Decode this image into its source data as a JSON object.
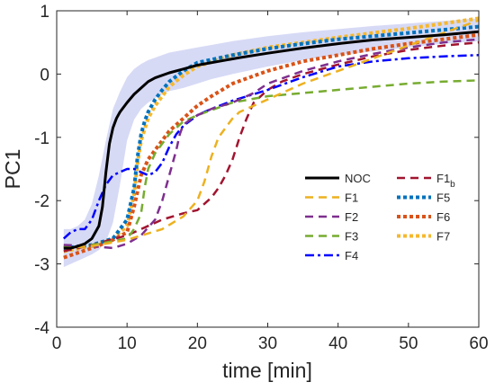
{
  "chart_data": {
    "type": "line",
    "title": "",
    "xlabel": "time [min]",
    "ylabel": "PC1",
    "xlim": [
      0,
      60
    ],
    "ylim": [
      -4,
      1
    ],
    "xticks": [
      0,
      10,
      20,
      30,
      40,
      50,
      60
    ],
    "yticks": [
      -4,
      -3,
      -2,
      -1,
      0,
      1
    ],
    "grid": false,
    "legend_position": "center-right",
    "noc_band": {
      "color": "#c9cdf2",
      "x": [
        1,
        2,
        3,
        4,
        5,
        6,
        7,
        8,
        9,
        10,
        11,
        12,
        13,
        14,
        15,
        16,
        18,
        20,
        22,
        25,
        30,
        35,
        40,
        45,
        50,
        55,
        60
      ],
      "upper": [
        -2.45,
        -2.45,
        -2.4,
        -2.3,
        -2.05,
        -1.6,
        -1.05,
        -0.55,
        -0.28,
        -0.05,
        0.08,
        0.16,
        0.22,
        0.26,
        0.3,
        0.34,
        0.38,
        0.42,
        0.46,
        0.52,
        0.6,
        0.66,
        0.71,
        0.76,
        0.8,
        0.84,
        0.88
      ],
      "lower": [
        -3.05,
        -3.0,
        -2.95,
        -2.9,
        -2.85,
        -2.78,
        -2.65,
        -2.35,
        -1.75,
        -1.05,
        -0.72,
        -0.55,
        -0.45,
        -0.38,
        -0.32,
        -0.27,
        -0.22,
        -0.15,
        -0.08,
        0.0,
        0.12,
        0.22,
        0.3,
        0.36,
        0.42,
        0.48,
        0.52
      ]
    },
    "series": [
      {
        "name": "NOC",
        "color": "#000000",
        "dash": "solid",
        "width": 3,
        "x": [
          1,
          2,
          3,
          4,
          5,
          6,
          6.5,
          7,
          7.5,
          8,
          8.5,
          9,
          10,
          11,
          12,
          13,
          14,
          16,
          18,
          20,
          23,
          26,
          30,
          35,
          40,
          45,
          50,
          55,
          60
        ],
        "y": [
          -2.75,
          -2.75,
          -2.72,
          -2.68,
          -2.6,
          -2.4,
          -2.1,
          -1.55,
          -1.1,
          -0.85,
          -0.7,
          -0.6,
          -0.45,
          -0.32,
          -0.22,
          -0.12,
          -0.06,
          0.02,
          0.08,
          0.14,
          0.2,
          0.26,
          0.33,
          0.41,
          0.48,
          0.54,
          0.58,
          0.62,
          0.67
        ]
      },
      {
        "name": "F1",
        "color": "#edb120",
        "dash": "dashed",
        "width": 2.5,
        "x": [
          1,
          5,
          10,
          15,
          18,
          20,
          21,
          22,
          23,
          24,
          25,
          26,
          28,
          30,
          35,
          40,
          45,
          50,
          55,
          60
        ],
        "y": [
          -2.75,
          -2.72,
          -2.62,
          -2.45,
          -2.25,
          -2.0,
          -1.7,
          -1.3,
          -1.0,
          -0.85,
          -0.7,
          -0.6,
          -0.5,
          -0.4,
          -0.15,
          0.05,
          0.25,
          0.45,
          0.65,
          0.85
        ]
      },
      {
        "name": "F2",
        "color": "#7e2f8e",
        "dash": "dashed",
        "width": 2.5,
        "x": [
          1,
          5,
          8,
          10,
          12,
          14,
          15,
          16,
          17,
          17.5,
          18,
          19,
          20,
          22,
          25,
          28,
          30,
          35,
          40,
          45,
          50,
          55,
          60
        ],
        "y": [
          -2.7,
          -2.72,
          -2.75,
          -2.68,
          -2.55,
          -2.3,
          -2.0,
          -1.6,
          -1.2,
          -0.95,
          -0.8,
          -0.72,
          -0.65,
          -0.55,
          -0.45,
          -0.3,
          -0.15,
          0.05,
          0.2,
          0.32,
          0.42,
          0.5,
          0.55
        ]
      },
      {
        "name": "F3",
        "color": "#77ac30",
        "dash": "dashed",
        "width": 2.5,
        "x": [
          1,
          5,
          10,
          11,
          12,
          12.5,
          13,
          14,
          15,
          16,
          18,
          20,
          25,
          30,
          35,
          40,
          45,
          50,
          55,
          60
        ],
        "y": [
          -2.72,
          -2.7,
          -2.6,
          -2.45,
          -2.2,
          -1.8,
          -1.5,
          -1.25,
          -1.1,
          -0.95,
          -0.75,
          -0.65,
          -0.45,
          -0.35,
          -0.3,
          -0.25,
          -0.2,
          -0.15,
          -0.12,
          -0.1
        ]
      },
      {
        "name": "F4",
        "color": "#0000ff",
        "dash": "dashdot",
        "width": 2.5,
        "x": [
          1,
          2,
          3,
          4,
          5,
          6,
          7,
          8,
          9,
          10,
          11,
          12,
          13,
          14,
          15,
          16,
          17,
          18,
          20,
          22,
          25,
          30,
          35,
          40,
          45,
          50,
          55,
          60
        ],
        "y": [
          -2.6,
          -2.5,
          -2.45,
          -2.45,
          -2.3,
          -2.0,
          -1.75,
          -1.6,
          -1.55,
          -1.5,
          -1.5,
          -1.55,
          -1.6,
          -1.55,
          -1.4,
          -1.15,
          -0.95,
          -0.82,
          -0.65,
          -0.55,
          -0.42,
          -0.25,
          -0.05,
          0.12,
          0.2,
          0.25,
          0.28,
          0.3
        ]
      },
      {
        "name": "F1_b",
        "color": "#a2142f",
        "dash": "dashed",
        "width": 2.5,
        "x": [
          1,
          5,
          10,
          15,
          18,
          20,
          22,
          23,
          24,
          25,
          26,
          27,
          28,
          30,
          32,
          35,
          40,
          45,
          50,
          55,
          60
        ],
        "y": [
          -2.8,
          -2.7,
          -2.55,
          -2.3,
          -2.2,
          -2.15,
          -1.95,
          -1.8,
          -1.6,
          -1.35,
          -1.0,
          -0.7,
          -0.45,
          -0.25,
          -0.12,
          0.0,
          0.15,
          0.28,
          0.38,
          0.45,
          0.5
        ]
      },
      {
        "name": "F5",
        "color": "#0072bd",
        "dash": "dotted",
        "width": 4,
        "x": [
          1,
          5,
          8,
          10,
          11,
          11.5,
          12,
          12.5,
          13,
          14,
          15,
          16,
          18,
          20,
          25,
          30,
          35,
          40,
          45,
          50,
          55,
          60
        ],
        "y": [
          -2.75,
          -2.7,
          -2.6,
          -2.3,
          -1.8,
          -1.3,
          -0.95,
          -0.75,
          -0.6,
          -0.4,
          -0.25,
          -0.12,
          0.05,
          0.18,
          0.3,
          0.4,
          0.48,
          0.55,
          0.6,
          0.65,
          0.7,
          0.75
        ]
      },
      {
        "name": "F6",
        "color": "#d95319",
        "dash": "dotted",
        "width": 4,
        "x": [
          1,
          5,
          8,
          10,
          11,
          12,
          13,
          14,
          15,
          16,
          18,
          20,
          22,
          25,
          30,
          35,
          40,
          45,
          50,
          55,
          60
        ],
        "y": [
          -2.9,
          -2.75,
          -2.62,
          -2.5,
          -2.1,
          -1.6,
          -1.35,
          -1.2,
          -1.05,
          -0.9,
          -0.7,
          -0.5,
          -0.35,
          -0.15,
          0.05,
          0.2,
          0.3,
          0.4,
          0.48,
          0.55,
          0.62
        ]
      },
      {
        "name": "F7",
        "color": "#f5b82e",
        "dash": "dotted",
        "width": 4,
        "x": [
          1,
          5,
          8,
          10,
          11,
          11.5,
          12,
          13,
          14,
          15,
          16,
          18,
          20,
          25,
          30,
          35,
          40,
          45,
          50,
          55,
          60
        ],
        "y": [
          -2.8,
          -2.72,
          -2.6,
          -2.4,
          -1.9,
          -1.4,
          -1.05,
          -0.7,
          -0.5,
          -0.35,
          -0.2,
          -0.02,
          0.12,
          0.3,
          0.42,
          0.5,
          0.58,
          0.65,
          0.72,
          0.8,
          0.88
        ]
      }
    ],
    "legend": [
      {
        "label": "NOC",
        "sub": "",
        "series": 0
      },
      {
        "label": "F1",
        "sub": "",
        "series": 1
      },
      {
        "label": "F2",
        "sub": "",
        "series": 2
      },
      {
        "label": "F3",
        "sub": "",
        "series": 3
      },
      {
        "label": "F4",
        "sub": "",
        "series": 4
      },
      {
        "label": "F1",
        "sub": "b",
        "series": 5
      },
      {
        "label": "F5",
        "sub": "",
        "series": 6
      },
      {
        "label": "F6",
        "sub": "",
        "series": 7
      },
      {
        "label": "F7",
        "sub": "",
        "series": 8
      }
    ]
  }
}
